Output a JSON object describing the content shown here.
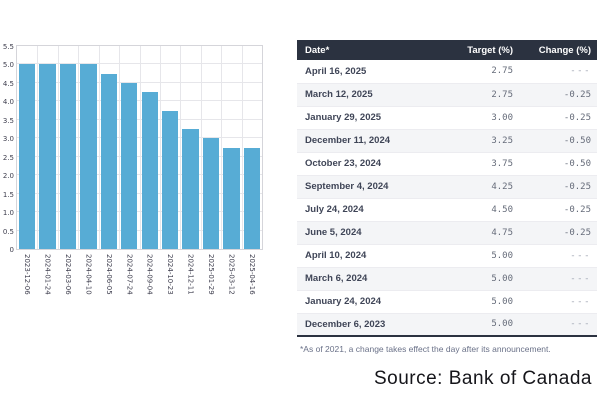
{
  "chart_data": {
    "type": "bar",
    "title": "",
    "xlabel": "",
    "ylabel": "",
    "categories": [
      "2023-12-06",
      "2024-01-24",
      "2024-03-06",
      "2024-04-10",
      "2024-06-05",
      "2024-07-24",
      "2024-09-04",
      "2024-10-23",
      "2024-12-11",
      "2025-01-29",
      "2025-03-12",
      "2025-04-16"
    ],
    "values": [
      5.0,
      5.0,
      5.0,
      5.0,
      4.75,
      4.5,
      4.25,
      3.75,
      3.25,
      3.0,
      2.75,
      2.75
    ],
    "ylim": [
      0,
      5.5
    ],
    "ytick_step": 0.5,
    "ytick_labels": [
      "0",
      "0.5",
      "1.0",
      "1.5",
      "2.0",
      "2.5",
      "3.0",
      "3.5",
      "4.0",
      "4.5",
      "5.0",
      "5.5"
    ],
    "grid": true,
    "legend": "none"
  },
  "table": {
    "headers": [
      "Date*",
      "Target (%)",
      "Change (%)"
    ],
    "rows": [
      {
        "date": "April 16, 2025",
        "target": "2.75",
        "change": "---"
      },
      {
        "date": "March 12, 2025",
        "target": "2.75",
        "change": "-0.25"
      },
      {
        "date": "January 29, 2025",
        "target": "3.00",
        "change": "-0.25"
      },
      {
        "date": "December 11, 2024",
        "target": "3.25",
        "change": "-0.50"
      },
      {
        "date": "October 23, 2024",
        "target": "3.75",
        "change": "-0.50"
      },
      {
        "date": "September 4, 2024",
        "target": "4.25",
        "change": "-0.25"
      },
      {
        "date": "July 24, 2024",
        "target": "4.50",
        "change": "-0.25"
      },
      {
        "date": "June 5, 2024",
        "target": "4.75",
        "change": "-0.25"
      },
      {
        "date": "April 10, 2024",
        "target": "5.00",
        "change": "---"
      },
      {
        "date": "March 6, 2024",
        "target": "5.00",
        "change": "---"
      },
      {
        "date": "January 24, 2024",
        "target": "5.00",
        "change": "---"
      },
      {
        "date": "December 6, 2023",
        "target": "5.00",
        "change": "---"
      }
    ],
    "footnote": "*As of 2021, a change takes effect the day after its announcement."
  },
  "source": "Source: Bank of Canada",
  "colors": {
    "bar": "#57acd5",
    "header_bg": "#2b3240",
    "row_stripe": "#f4f5f7",
    "date_text": "#3f4557",
    "number_text": "#666c7a",
    "dash_text": "#a0a6b2",
    "footnote_text": "#6a7188",
    "gridline": "#e6e6ea"
  }
}
